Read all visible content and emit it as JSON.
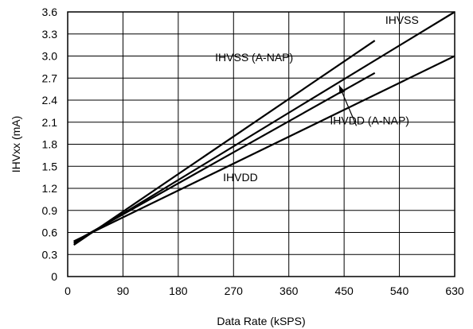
{
  "chart_data": {
    "type": "line",
    "xlabel": "Data Rate (kSPS)",
    "ylabel": "IHVxx (mA)",
    "xlim": [
      0,
      630
    ],
    "ylim": [
      0,
      3.6
    ],
    "x_ticks": [
      "0",
      "90",
      "180",
      "270",
      "360",
      "450",
      "540",
      "630"
    ],
    "y_ticks": [
      "0",
      "0.3",
      "0.6",
      "0.9",
      "1.2",
      "1.5",
      "1.8",
      "2.1",
      "2.4",
      "2.7",
      "3.0",
      "3.3",
      "3.6"
    ],
    "grid": true,
    "series": [
      {
        "name": "IHVSS",
        "x": [
          10,
          630
        ],
        "y": [
          0.45,
          3.6
        ]
      },
      {
        "name": "IHVSS (A-NAP)",
        "x": [
          10,
          500
        ],
        "y": [
          0.43,
          3.21
        ]
      },
      {
        "name": "IHVDD (A-NAP)",
        "x": [
          10,
          500
        ],
        "y": [
          0.47,
          2.77
        ]
      },
      {
        "name": "IHVDD",
        "x": [
          10,
          630
        ],
        "y": [
          0.48,
          3.0
        ]
      }
    ],
    "annotations": [
      {
        "text": "IHVSS",
        "x": 517,
        "y": 3.44
      },
      {
        "text": "IHVSS (A-NAP)",
        "x": 240,
        "y": 2.93
      },
      {
        "text": "IHVDD (A-NAP)",
        "x": 427,
        "y": 2.07
      },
      {
        "text": "IHVDD",
        "x": 253,
        "y": 1.3
      }
    ],
    "arrow": {
      "from": [
        470,
        2.05
      ],
      "to": [
        442,
        2.6
      ]
    }
  }
}
